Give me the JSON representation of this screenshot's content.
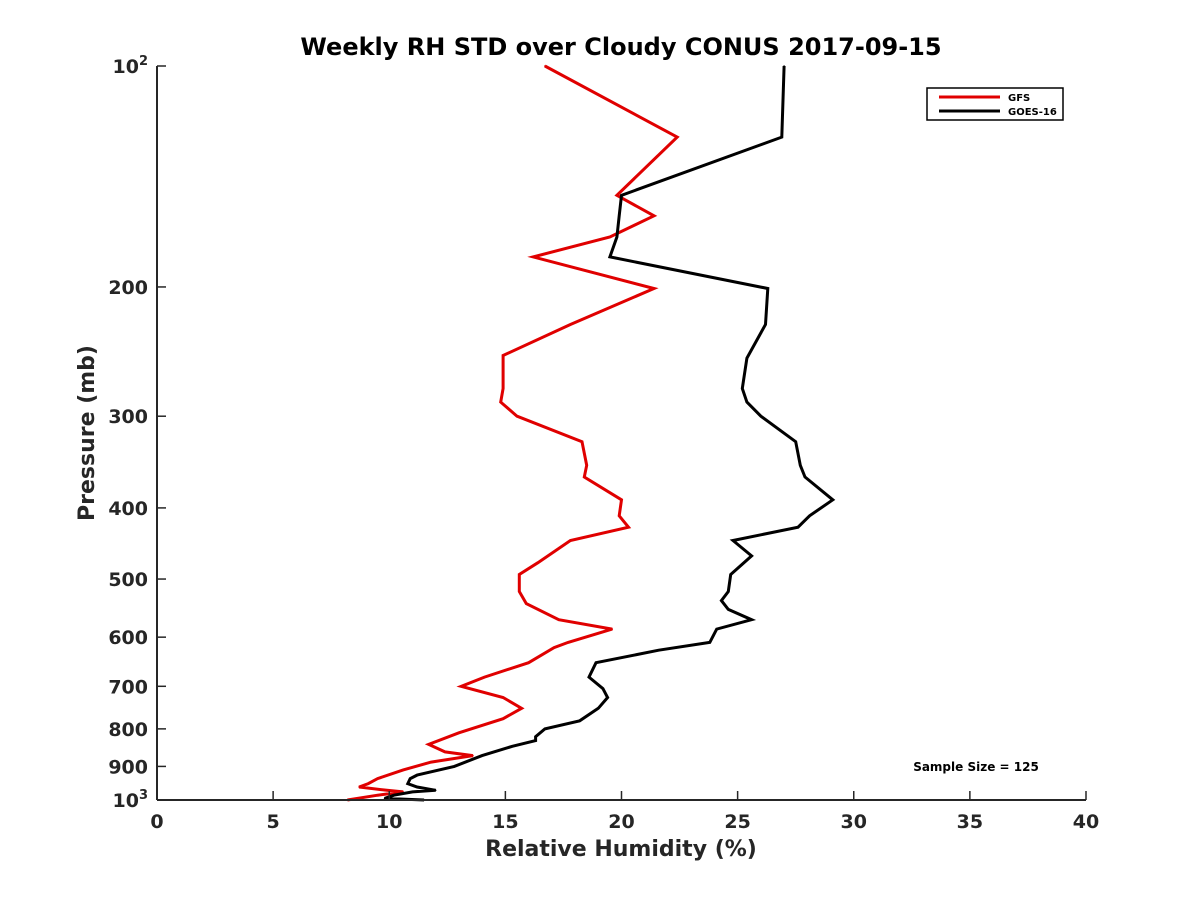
{
  "chart_data": {
    "type": "line",
    "title": "Weekly RH STD over Cloudy CONUS 2017-09-15",
    "xlabel": "Relative Humidity (%)",
    "ylabel": "Pressure (mb)",
    "xlim": [
      0,
      40
    ],
    "ylim": [
      100,
      1000
    ],
    "y_scale": "log",
    "y_reversed": true,
    "x_ticks": [
      "0",
      "5",
      "10",
      "15",
      "20",
      "25",
      "30",
      "35",
      "40"
    ],
    "y_ticks": [
      {
        "value": 100,
        "base": "10",
        "exp": "2"
      },
      {
        "value": 200,
        "text": "200"
      },
      {
        "value": 300,
        "text": "300"
      },
      {
        "value": 400,
        "text": "400"
      },
      {
        "value": 500,
        "text": "500"
      },
      {
        "value": 600,
        "text": "600"
      },
      {
        "value": 700,
        "text": "700"
      },
      {
        "value": 800,
        "text": "800"
      },
      {
        "value": 900,
        "text": "900"
      },
      {
        "value": 1000,
        "base": "10",
        "exp": "3"
      }
    ],
    "legend_position": "top-right",
    "annotation": "Sample Size = 125",
    "series": [
      {
        "name": "GFS",
        "color": "#e00000",
        "points": [
          [
            16.7,
            100
          ],
          [
            22.4,
            125
          ],
          [
            19.8,
            150
          ],
          [
            21.4,
            160
          ],
          [
            19.5,
            171
          ],
          [
            16.2,
            182
          ],
          [
            21.4,
            201
          ],
          [
            17.8,
            225
          ],
          [
            14.9,
            248
          ],
          [
            14.9,
            275
          ],
          [
            14.8,
            287
          ],
          [
            15.5,
            300
          ],
          [
            18.3,
            325
          ],
          [
            18.5,
            350
          ],
          [
            18.4,
            363
          ],
          [
            20.0,
            390
          ],
          [
            19.9,
            410
          ],
          [
            20.3,
            425
          ],
          [
            17.8,
            443
          ],
          [
            16.4,
            475
          ],
          [
            15.6,
            493
          ],
          [
            15.6,
            520
          ],
          [
            15.9,
            540
          ],
          [
            17.3,
            568
          ],
          [
            19.6,
            585
          ],
          [
            17.7,
            610
          ],
          [
            17.1,
            620
          ],
          [
            16.0,
            650
          ],
          [
            14.1,
            680
          ],
          [
            13.1,
            700
          ],
          [
            14.9,
            725
          ],
          [
            15.7,
            750
          ],
          [
            14.9,
            775
          ],
          [
            13.0,
            810
          ],
          [
            11.7,
            840
          ],
          [
            12.4,
            860
          ],
          [
            13.6,
            870
          ],
          [
            11.8,
            888
          ],
          [
            10.6,
            910
          ],
          [
            9.5,
            935
          ],
          [
            9.1,
            950
          ],
          [
            8.7,
            960
          ],
          [
            9.9,
            970
          ],
          [
            10.6,
            975
          ],
          [
            9.5,
            985
          ],
          [
            8.2,
            1000
          ]
        ]
      },
      {
        "name": "GOES-16",
        "color": "#000000",
        "points": [
          [
            27.0,
            100
          ],
          [
            26.9,
            125
          ],
          [
            20.0,
            150
          ],
          [
            19.9,
            160
          ],
          [
            19.8,
            171
          ],
          [
            19.5,
            182
          ],
          [
            26.3,
            201
          ],
          [
            26.2,
            225
          ],
          [
            25.4,
            250
          ],
          [
            25.2,
            275
          ],
          [
            25.4,
            287
          ],
          [
            26.0,
            300
          ],
          [
            27.5,
            325
          ],
          [
            27.7,
            350
          ],
          [
            27.9,
            363
          ],
          [
            29.1,
            390
          ],
          [
            28.1,
            410
          ],
          [
            27.6,
            425
          ],
          [
            24.8,
            443
          ],
          [
            25.6,
            465
          ],
          [
            24.7,
            493
          ],
          [
            24.6,
            520
          ],
          [
            24.3,
            535
          ],
          [
            24.6,
            550
          ],
          [
            25.6,
            568
          ],
          [
            24.1,
            585
          ],
          [
            23.8,
            610
          ],
          [
            21.6,
            625
          ],
          [
            18.9,
            650
          ],
          [
            18.6,
            680
          ],
          [
            19.2,
            705
          ],
          [
            19.4,
            725
          ],
          [
            19.0,
            750
          ],
          [
            18.2,
            780
          ],
          [
            16.7,
            800
          ],
          [
            16.3,
            820
          ],
          [
            16.3,
            830
          ],
          [
            15.3,
            845
          ],
          [
            14.0,
            870
          ],
          [
            12.8,
            900
          ],
          [
            11.2,
            925
          ],
          [
            10.9,
            935
          ],
          [
            10.8,
            950
          ],
          [
            11.2,
            960
          ],
          [
            12.0,
            970
          ],
          [
            11.0,
            975
          ],
          [
            10.2,
            985
          ],
          [
            9.8,
            995
          ],
          [
            11.5,
            1000
          ]
        ]
      }
    ]
  }
}
